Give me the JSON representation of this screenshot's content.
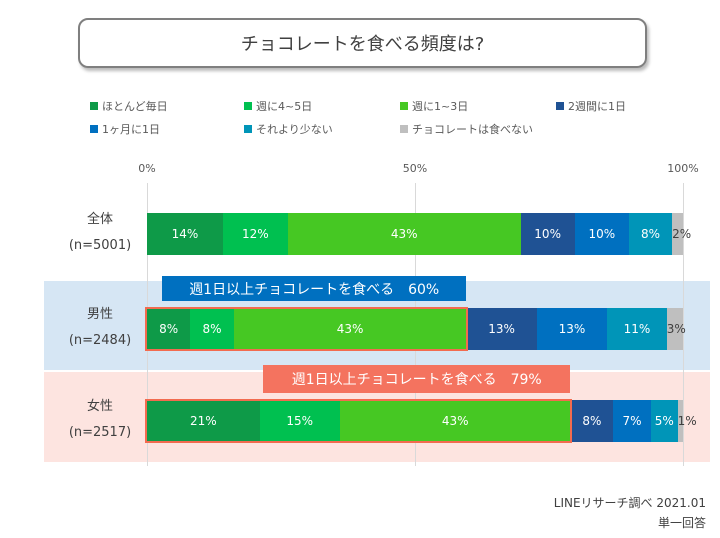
{
  "chart_data": {
    "type": "stacked-bar-horizontal",
    "title": "チョコレートを食べる頻度は?",
    "x_ticks": [
      "0%",
      "50%",
      "100%"
    ],
    "xlim": [
      0,
      100
    ],
    "grid": true,
    "legend_position": "top",
    "series": [
      {
        "name": "ほとんど毎日",
        "color": "#0e9a48"
      },
      {
        "name": "週に4~5日",
        "color": "#00c050"
      },
      {
        "name": "週に1~3日",
        "color": "#46c823"
      },
      {
        "name": "2週間に1日",
        "color": "#1f5294"
      },
      {
        "name": "1ヶ月に1日",
        "color": "#0070c0"
      },
      {
        "name": "それより少ない",
        "color": "#0095b8"
      },
      {
        "name": "チョコレートは食べない",
        "color": "#bfbfbf"
      }
    ],
    "categories": [
      {
        "label": "全体",
        "n": "(n=5001)",
        "values": [
          14,
          12,
          43,
          10,
          10,
          8,
          2
        ]
      },
      {
        "label": "男性",
        "n": "(n=2484)",
        "values": [
          8,
          8,
          43,
          13,
          13,
          11,
          3
        ],
        "callout": "週1日以上チョコレートを食べる　60%",
        "callout_color": "#0070c0",
        "band_color": "#d6e6f4"
      },
      {
        "label": "女性",
        "n": "(n=2517)",
        "values": [
          21,
          15,
          43,
          8,
          7,
          5,
          1
        ],
        "callout": "週1日以上チョコレートを食べる　79%",
        "callout_color": "#f4735f",
        "band_color": "#fde4e0"
      }
    ]
  },
  "footer": {
    "source": "LINEリサーチ調べ 2021.01",
    "note": "単一回答"
  }
}
